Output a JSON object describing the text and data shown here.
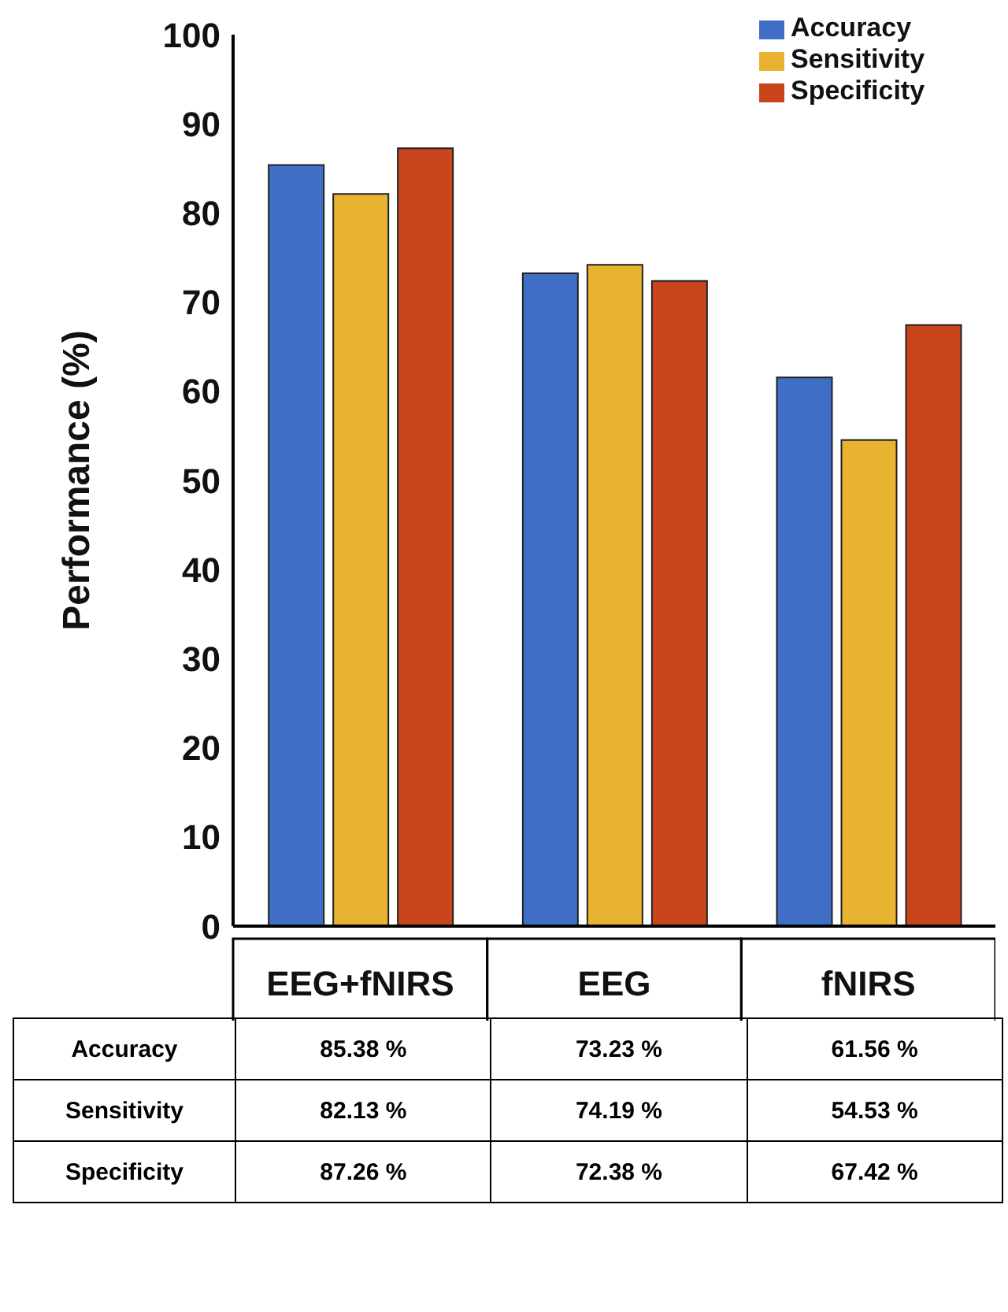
{
  "chart_data": {
    "type": "bar",
    "ylabel": "Performance (%)",
    "categories": [
      "EEG+fNIRS",
      "EEG",
      "fNIRS"
    ],
    "series": [
      {
        "name": "Accuracy",
        "color": "#3f6fc5",
        "values": [
          85.38,
          73.23,
          61.56
        ],
        "value_labels": [
          "85.38 %",
          "73.23 %",
          "61.56 %"
        ]
      },
      {
        "name": "Sensitivity",
        "color": "#e8b330",
        "values": [
          82.13,
          74.19,
          54.53
        ],
        "value_labels": [
          "82.13 %",
          "74.19 %",
          "54.53 %"
        ]
      },
      {
        "name": "Specificity",
        "color": "#c9461c",
        "values": [
          87.26,
          72.38,
          67.42
        ],
        "value_labels": [
          "87.26 %",
          "72.38 %",
          "67.42 %"
        ]
      }
    ],
    "ylim": [
      0,
      100
    ],
    "yticks": [
      0,
      10,
      20,
      30,
      40,
      50,
      60,
      70,
      80,
      90,
      100
    ],
    "legend": "top right",
    "grid": false
  }
}
